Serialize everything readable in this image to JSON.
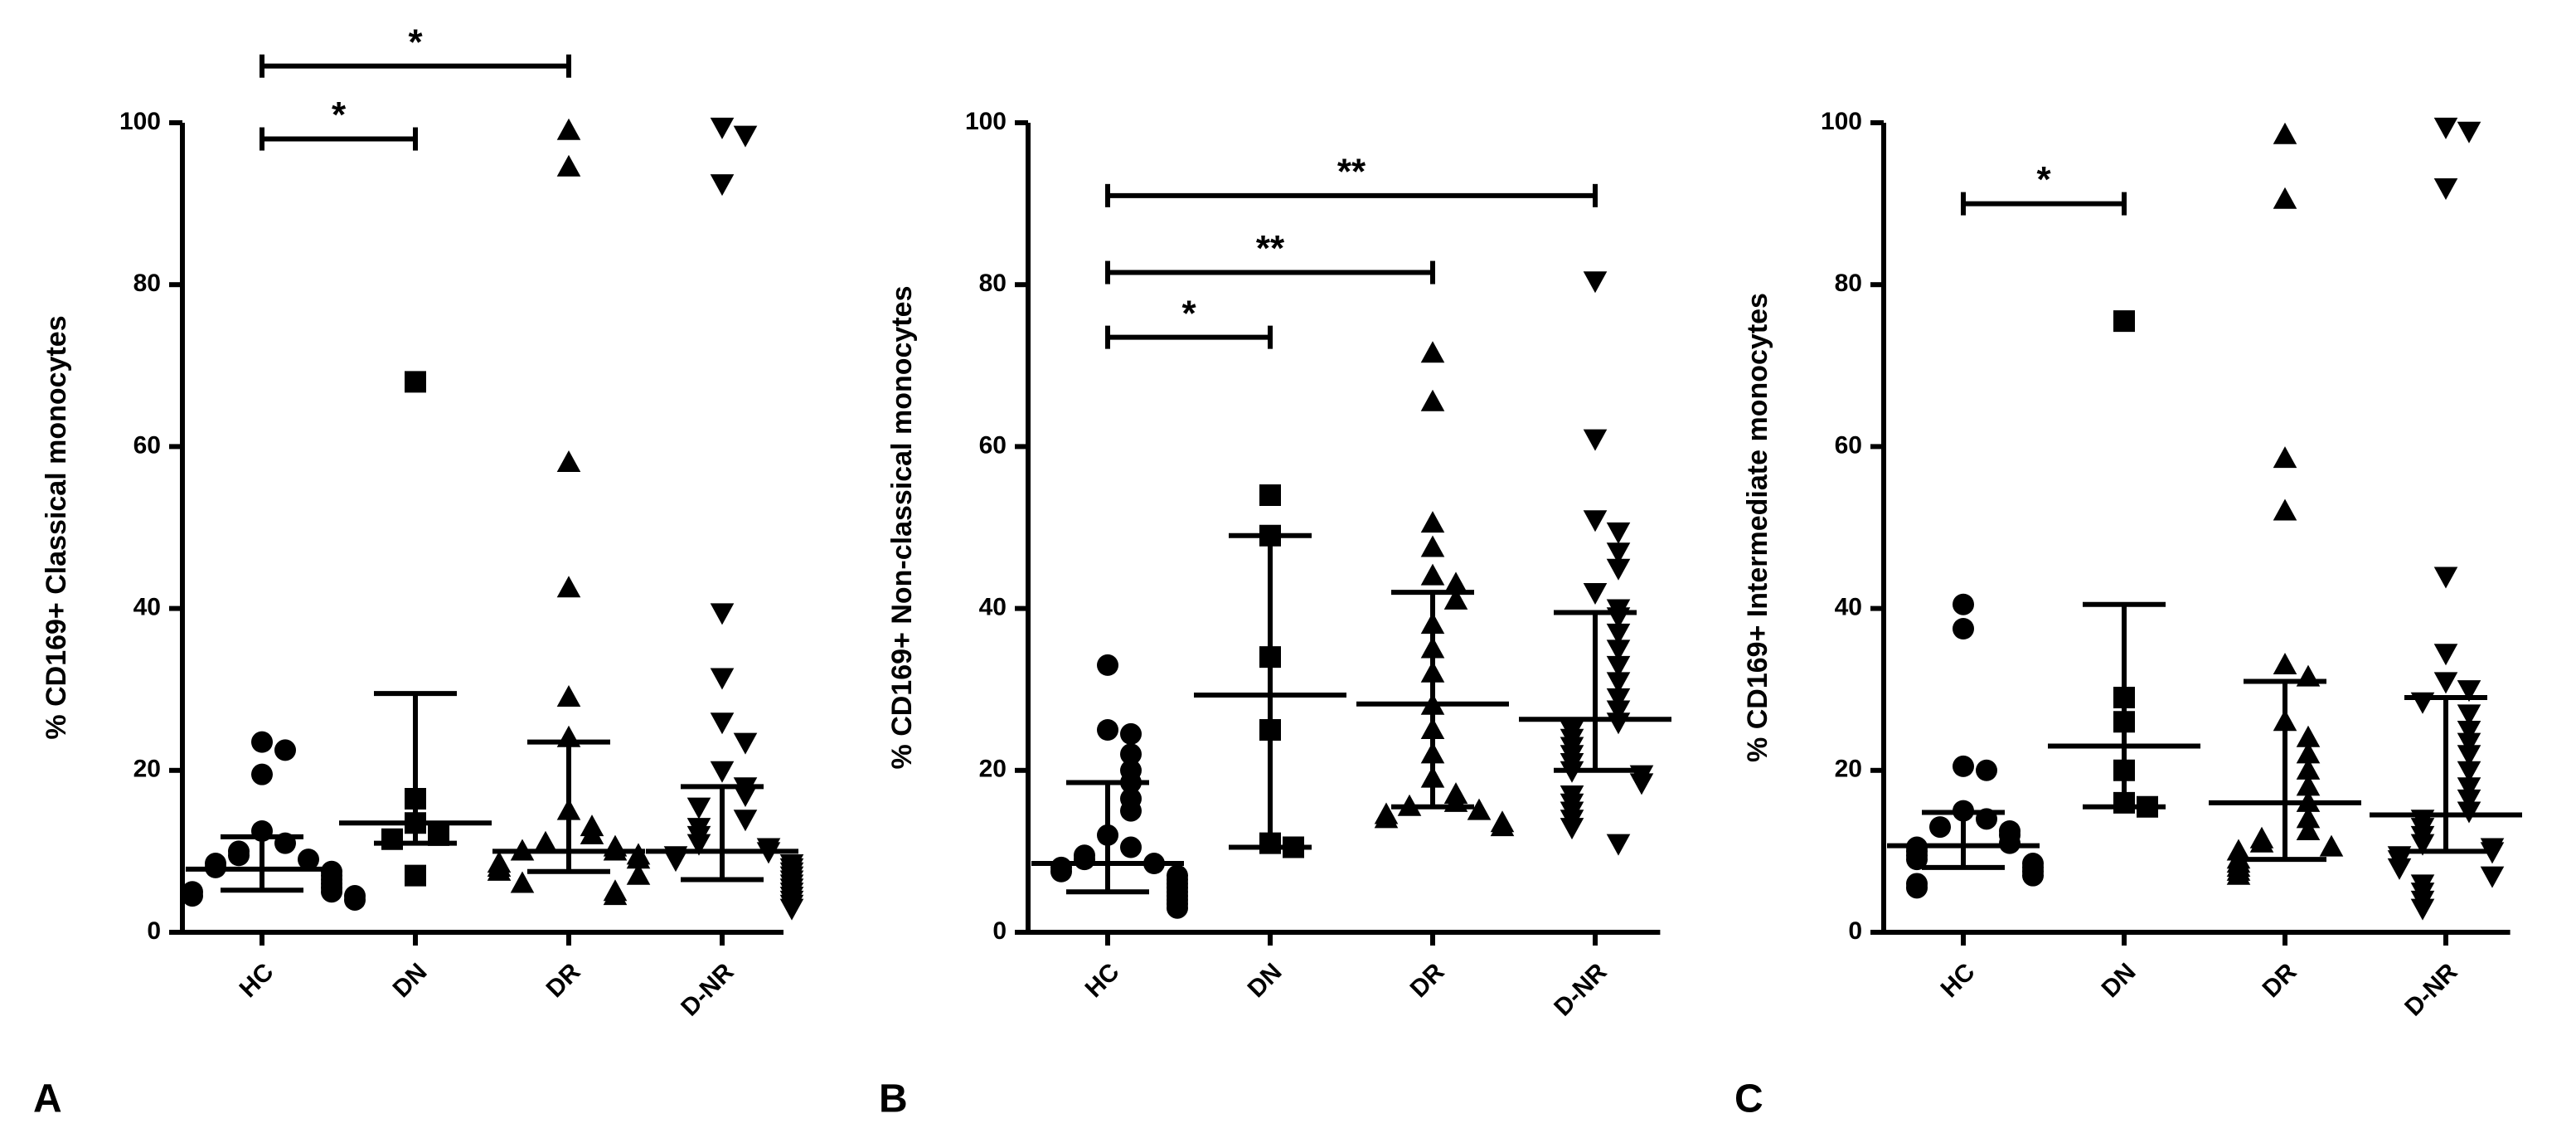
{
  "chart_data": [
    {
      "type": "dotplot",
      "panel_label": "A",
      "ylabel": "% CD169+ Classical monocytes",
      "categories": [
        "HC",
        "DN",
        "DR",
        "D-NR"
      ],
      "markers": [
        "circle",
        "square",
        "triangle-up",
        "triangle-down"
      ],
      "color": "#000000",
      "values": [
        [
          23.5,
          22.5,
          19.5,
          12.5,
          11,
          10,
          9.5,
          9,
          8.5,
          8,
          7.5,
          7,
          6.5,
          6,
          5.5,
          5,
          5,
          4.5,
          4.5,
          4
        ],
        [
          68,
          16.5,
          13.5,
          12,
          11.5,
          7
        ],
        [
          99,
          94.5,
          58,
          42.5,
          29,
          24,
          15,
          13,
          12,
          11,
          10.5,
          10,
          10,
          9.5,
          9,
          8.5,
          8,
          7.5,
          7,
          6,
          5,
          4.5
        ],
        [
          99.5,
          98.5,
          92.5,
          39.5,
          31.5,
          26,
          23.5,
          20,
          18,
          17,
          15.5,
          14,
          13,
          12,
          11,
          10.5,
          10,
          9.5,
          9,
          8.5,
          8,
          7.5,
          7,
          6.5,
          6,
          5.5,
          5,
          4.5,
          4,
          3.5,
          3
        ]
      ],
      "medians": [
        7.8,
        13.5,
        10,
        10
      ],
      "q1": [
        5.2,
        11,
        7.5,
        6.5
      ],
      "q3": [
        11.8,
        29.5,
        23.5,
        18
      ],
      "significance": [
        {
          "from": 0,
          "to": 1,
          "y": 98,
          "label": "*"
        },
        {
          "from": 0,
          "to": 2,
          "y": 107,
          "label": "*"
        }
      ],
      "ylim": [
        0,
        100
      ],
      "yticks": [
        0,
        20,
        40,
        60,
        80,
        100
      ]
    },
    {
      "type": "dotplot",
      "panel_label": "B",
      "ylabel": "% CD169+ Non-classical monocytes",
      "categories": [
        "HC",
        "DN",
        "DR",
        "D-NR"
      ],
      "markers": [
        "circle",
        "square",
        "triangle-up",
        "triangle-down"
      ],
      "color": "#000000",
      "values": [
        [
          33,
          25,
          24.5,
          22,
          20,
          18.5,
          16.5,
          15,
          12,
          10.5,
          9.5,
          9,
          8.5,
          8,
          7.5,
          7,
          6.5,
          6,
          5.5,
          5,
          4.5,
          4,
          3.5,
          3
        ],
        [
          54,
          49,
          34,
          25,
          11,
          10.5
        ],
        [
          71.5,
          65.5,
          50.5,
          47.5,
          44,
          43,
          41,
          38,
          35,
          32,
          28,
          25,
          22,
          19,
          17,
          16,
          15.5,
          15,
          14.5,
          14,
          13.5,
          13
        ],
        [
          80.5,
          61,
          51,
          49.5,
          47,
          45,
          42,
          40,
          39,
          37,
          35,
          33,
          31,
          29,
          27.5,
          26,
          25,
          24,
          23,
          22,
          21,
          20,
          19.5,
          18.5,
          17,
          16,
          15,
          14,
          13,
          11
        ]
      ],
      "medians": [
        8.5,
        29.3,
        28.2,
        26.3
      ],
      "q1": [
        5,
        10.5,
        15.5,
        20
      ],
      "q3": [
        18.5,
        49,
        42,
        39.5
      ],
      "significance": [
        {
          "from": 0,
          "to": 1,
          "y": 73.5,
          "label": "*"
        },
        {
          "from": 0,
          "to": 2,
          "y": 81.5,
          "label": "**"
        },
        {
          "from": 0,
          "to": 3,
          "y": 91,
          "label": "**"
        }
      ],
      "ylim": [
        0,
        100
      ],
      "yticks": [
        0,
        20,
        40,
        60,
        80,
        100
      ]
    },
    {
      "type": "dotplot",
      "panel_label": "C",
      "ylabel": "% CD169+ Intermediate monocytes",
      "categories": [
        "HC",
        "DN",
        "DR",
        "D-NR"
      ],
      "markers": [
        "circle",
        "square",
        "triangle-up",
        "triangle-down"
      ],
      "color": "#000000",
      "values": [
        [
          40.5,
          37.5,
          20.5,
          20,
          15,
          14,
          13,
          12.5,
          12,
          11,
          10.5,
          10,
          9.5,
          9,
          8.5,
          8,
          7.5,
          7,
          6,
          5.5
        ],
        [
          75.5,
          29,
          26,
          20,
          16,
          15.5
        ],
        [
          98.5,
          90.5,
          58.5,
          52,
          33,
          31.5,
          26,
          24,
          22,
          20,
          18,
          16,
          14,
          12.5,
          11.5,
          11,
          10.5,
          10,
          9,
          8.5,
          8,
          7.5,
          7
        ],
        [
          99.5,
          99,
          92,
          44,
          34.5,
          31,
          30,
          28.5,
          27,
          25,
          23.5,
          22,
          20,
          18,
          16.5,
          15,
          14,
          13,
          12,
          11,
          10.5,
          10,
          9.5,
          9,
          8,
          7,
          6,
          5,
          4,
          3
        ]
      ],
      "medians": [
        10.7,
        23,
        16,
        14.5
      ],
      "q1": [
        8,
        15.5,
        9,
        10
      ],
      "q3": [
        14.8,
        40.5,
        31,
        29
      ],
      "significance": [
        {
          "from": 0,
          "to": 1,
          "y": 90,
          "label": "*"
        }
      ],
      "ylim": [
        0,
        100
      ],
      "yticks": [
        0,
        20,
        40,
        60,
        80,
        100
      ]
    }
  ]
}
